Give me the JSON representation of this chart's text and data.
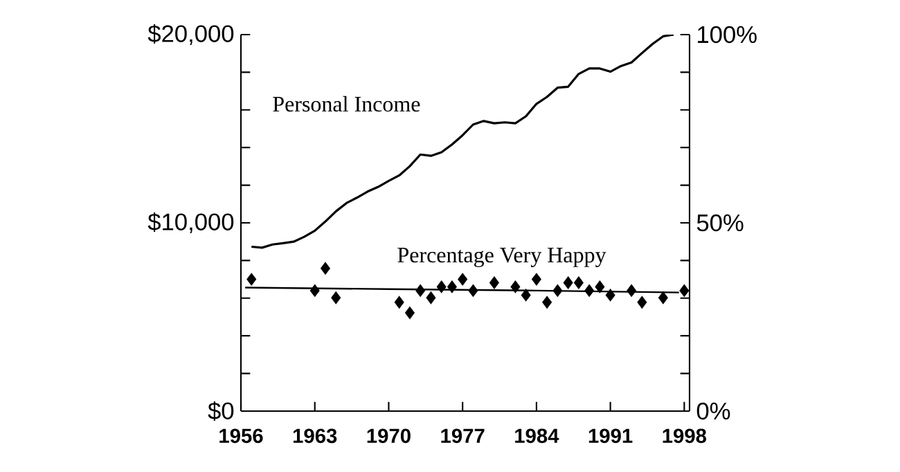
{
  "chart_data": {
    "type": "line",
    "xlim": [
      1956,
      1998.5
    ],
    "xticks": [
      1956,
      1963,
      1970,
      1977,
      1984,
      1991,
      1998
    ],
    "ylim": [
      0,
      20000
    ],
    "yticks": [
      {
        "value": 0,
        "label": "$0"
      },
      {
        "value": 2000,
        "label": null
      },
      {
        "value": 4000,
        "label": null
      },
      {
        "value": 6000,
        "label": null
      },
      {
        "value": 8000,
        "label": null
      },
      {
        "value": 10000,
        "label": "$10,000"
      },
      {
        "value": 12000,
        "label": null
      },
      {
        "value": 14000,
        "label": null
      },
      {
        "value": 16000,
        "label": null
      },
      {
        "value": 18000,
        "label": null
      },
      {
        "value": 20000,
        "label": "$20,000"
      }
    ],
    "y2lim": [
      0,
      100
    ],
    "y2ticks": [
      {
        "value": 0,
        "label": "0%"
      },
      {
        "value": 10,
        "label": null
      },
      {
        "value": 20,
        "label": null
      },
      {
        "value": 30,
        "label": null
      },
      {
        "value": 40,
        "label": null
      },
      {
        "value": 50,
        "label": "50%"
      },
      {
        "value": 60,
        "label": null
      },
      {
        "value": 70,
        "label": null
      },
      {
        "value": 80,
        "label": null
      },
      {
        "value": 90,
        "label": null
      },
      {
        "value": 100,
        "label": "100%"
      }
    ],
    "series": [
      {
        "name": "Personal Income",
        "color": "#000000",
        "x": [
          1957,
          1958,
          1959,
          1960,
          1961,
          1962,
          1963,
          1964,
          1965,
          1966,
          1967,
          1968,
          1969,
          1970,
          1971,
          1972,
          1973,
          1974,
          1975,
          1976,
          1977,
          1978,
          1979,
          1980,
          1981,
          1982,
          1983,
          1984,
          1985,
          1986,
          1987,
          1988,
          1989,
          1990,
          1991,
          1992,
          1993,
          1994,
          1995,
          1996,
          1997
        ],
        "values": [
          8730,
          8680,
          8850,
          8920,
          9000,
          9260,
          9580,
          10070,
          10610,
          11050,
          11340,
          11660,
          11910,
          12230,
          12520,
          13010,
          13630,
          13560,
          13750,
          14160,
          14650,
          15220,
          15410,
          15290,
          15340,
          15290,
          15660,
          16320,
          16690,
          17180,
          17230,
          17910,
          18200,
          18200,
          18030,
          18330,
          18520,
          19020,
          19500,
          19910,
          20000
        ]
      },
      {
        "axis": "y2",
        "color": "#000000",
        "x": [
          1956.4,
          1970,
          1984,
          1997.5
        ],
        "values": [
          32.8,
          32.4,
          32.0,
          31.5
        ]
      },
      {
        "name": "Percentage Very Happy",
        "type": "scatter",
        "axis": "y2",
        "color": "#000000",
        "marker": "diamond",
        "x": [
          1957,
          1963,
          1964,
          1965,
          1971,
          1972,
          1973,
          1974,
          1975,
          1976,
          1977,
          1978,
          1980,
          1982,
          1983,
          1984,
          1985,
          1986,
          1987,
          1988,
          1989,
          1990,
          1991,
          1993,
          1994,
          1996,
          1998
        ],
        "values": [
          35.0,
          32.0,
          37.9,
          30.1,
          28.9,
          26.1,
          32.0,
          30.1,
          33.0,
          33.0,
          35.0,
          32.0,
          34.1,
          33.0,
          30.8,
          35.0,
          28.9,
          32.0,
          34.1,
          34.1,
          32.0,
          33.0,
          30.8,
          32.0,
          28.9,
          30.1,
          32.0
        ]
      }
    ]
  }
}
